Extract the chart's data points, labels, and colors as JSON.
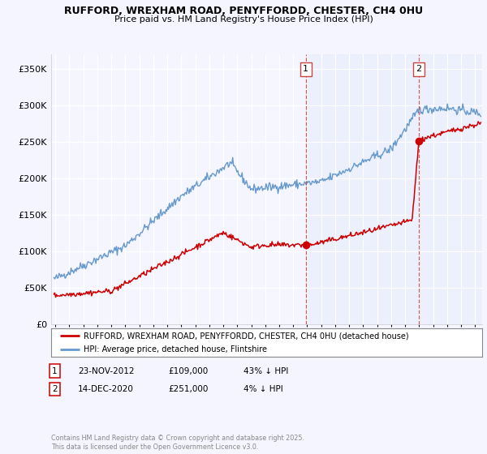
{
  "title": "RUFFORD, WREXHAM ROAD, PENYFFORDD, CHESTER, CH4 0HU",
  "subtitle": "Price paid vs. HM Land Registry's House Price Index (HPI)",
  "ylabel_ticks": [
    "£0",
    "£50K",
    "£100K",
    "£150K",
    "£200K",
    "£250K",
    "£300K",
    "£350K"
  ],
  "ytick_vals": [
    0,
    50000,
    100000,
    150000,
    200000,
    250000,
    300000,
    350000
  ],
  "ylim": [
    0,
    370000
  ],
  "xlim_start": 1994.7,
  "xlim_end": 2025.5,
  "background_color": "#f5f5ff",
  "plot_bg_color": "#f5f5ff",
  "shade_color": "#dde8f8",
  "red_line_color": "#cc0000",
  "blue_line_color": "#6699cc",
  "vline1_x": 2012.9,
  "vline2_x": 2020.96,
  "ann1_x": 2012.9,
  "ann1_y": 109000,
  "ann2_x": 2020.96,
  "ann2_y": 251000,
  "legend_line1": "RUFFORD, WREXHAM ROAD, PENYFFORDD, CHESTER, CH4 0HU (detached house)",
  "legend_line2": "HPI: Average price, detached house, Flintshire",
  "footnote": "Contains HM Land Registry data © Crown copyright and database right 2025.\nThis data is licensed under the Open Government Licence v3.0.",
  "table_row1": [
    "1",
    "23-NOV-2012",
    "£109,000",
    "43% ↓ HPI"
  ],
  "table_row2": [
    "2",
    "14-DEC-2020",
    "£251,000",
    "4% ↓ HPI"
  ]
}
